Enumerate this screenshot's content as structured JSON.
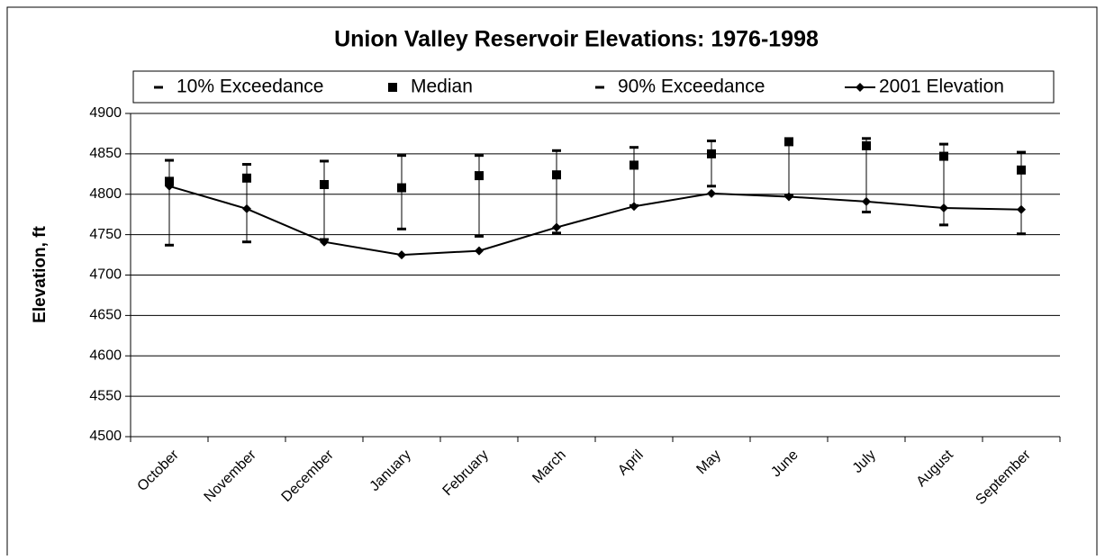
{
  "chart_data": {
    "type": "line",
    "title": "Union Valley Reservoir Elevations: 1976-1998",
    "y_label": "Elevation, ft",
    "categories": [
      "October",
      "November",
      "December",
      "January",
      "February",
      "March",
      "April",
      "May",
      "June",
      "July",
      "August",
      "September"
    ],
    "series": [
      {
        "name": "10% Exceedance",
        "color": "#000000",
        "marker": "dash",
        "values": [
          4842,
          4837,
          4841,
          4848,
          4848,
          4854,
          4858,
          4866,
          4866,
          4869,
          4862,
          4852
        ]
      },
      {
        "name": "Median",
        "color": "#000000",
        "marker": "square",
        "values": [
          4816,
          4820,
          4812,
          4808,
          4823,
          4824,
          4836,
          4850,
          4865,
          4860,
          4847,
          4830
        ]
      },
      {
        "name": "90% Exceedance",
        "color": "#000000",
        "marker": "dash",
        "values": [
          4737,
          4741,
          4744,
          4757,
          4748,
          4752,
          4786,
          4810,
          4799,
          4778,
          4762,
          4751
        ]
      },
      {
        "name": "2001 Elevation",
        "color": "#000000",
        "marker": "diamond",
        "line": true,
        "values": [
          4810,
          4782,
          4741,
          4725,
          4730,
          4759,
          4785,
          4801,
          4797,
          4791,
          4783,
          4781
        ]
      }
    ],
    "ylim": [
      4500,
      4900
    ],
    "yticks": [
      4500,
      4550,
      4600,
      4650,
      4700,
      4750,
      4800,
      4850,
      4900
    ],
    "grid": true,
    "legend": "top"
  }
}
